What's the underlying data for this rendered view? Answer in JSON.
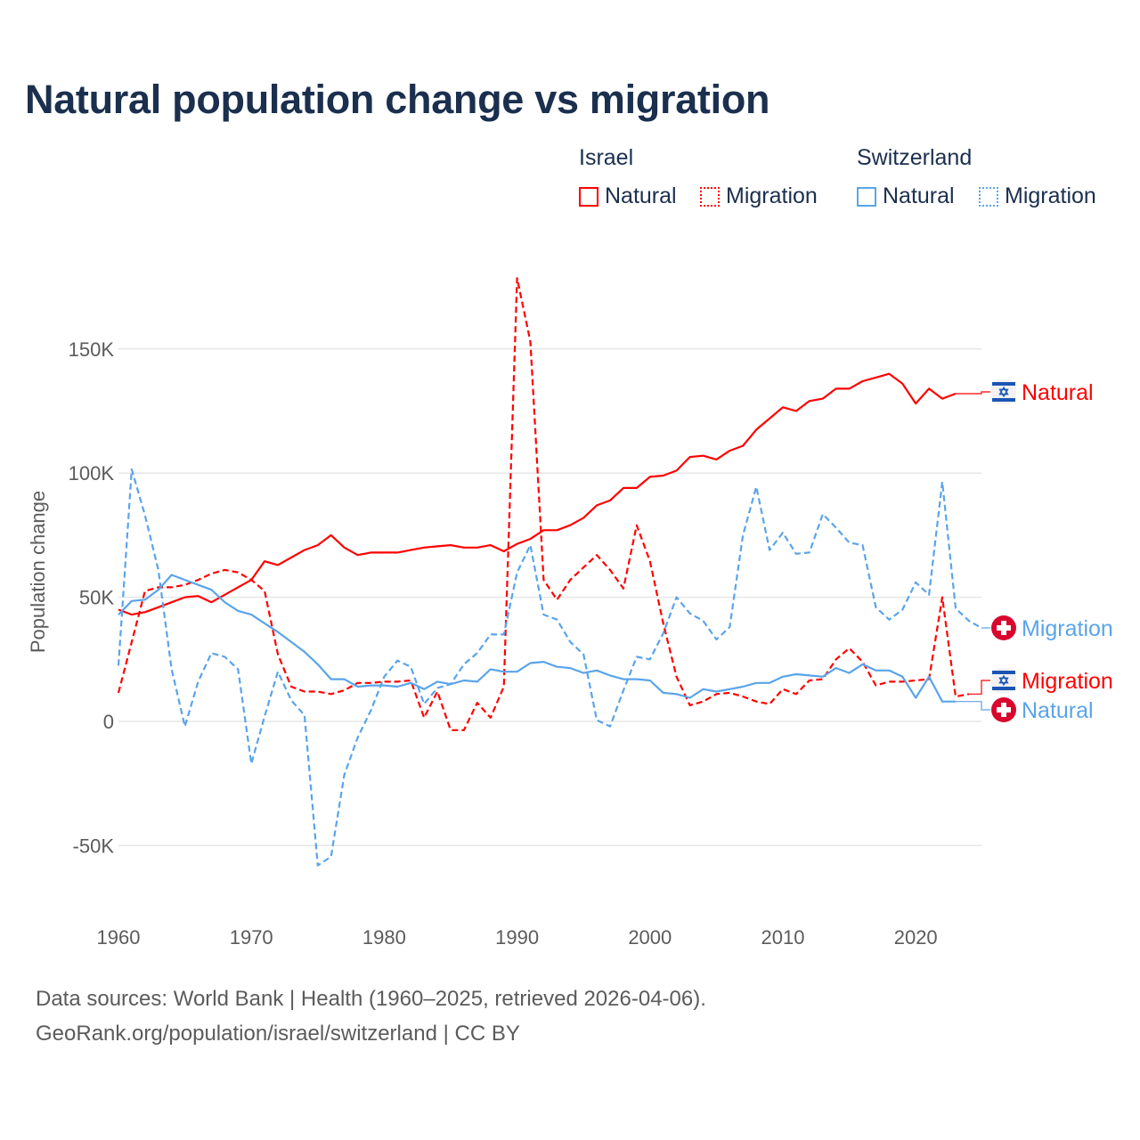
{
  "title": "Natural population change vs migration",
  "legend": {
    "groups": [
      {
        "name": "Israel",
        "items": [
          {
            "label": "Natural",
            "style": "solid",
            "color": "#ff0000"
          },
          {
            "label": "Migration",
            "style": "dotted",
            "color": "#ff0000"
          }
        ]
      },
      {
        "name": "Switzerland",
        "items": [
          {
            "label": "Natural",
            "style": "solid",
            "color": "#5aa4ea"
          },
          {
            "label": "Migration",
            "style": "dotted",
            "color": "#5aa4ea"
          }
        ]
      }
    ]
  },
  "footer": {
    "line1": "Data sources: World Bank | Health (1960–2025, retrieved 2026-04-06).",
    "line2": "GeoRank.org/population/israel/switzerland | CC BY"
  },
  "chart_data": {
    "type": "line",
    "title": "Natural population change vs migration",
    "xlabel": "",
    "ylabel": "Population change",
    "xlim": [
      1960,
      2025
    ],
    "ylim": [
      -60000,
      180000
    ],
    "x_ticks": [
      1960,
      1970,
      1980,
      1990,
      2000,
      2010,
      2020
    ],
    "x_tick_labels": [
      "1960",
      "1970",
      "1980",
      "1990",
      "2000",
      "2010",
      "2020"
    ],
    "y_ticks": [
      -50000,
      0,
      50000,
      100000,
      150000
    ],
    "y_tick_labels": [
      "-50K",
      "0",
      "50K",
      "100K",
      "150K"
    ],
    "grid": "horizontal",
    "legend_position": "top-right",
    "series": [
      {
        "name": "Israel Natural",
        "country": "Israel",
        "kind": "Natural",
        "color": "#ff0000",
        "dash": "solid",
        "end_label": "Natural",
        "flag": "israel-flag",
        "start_year": 1960,
        "values": [
          45000,
          43000,
          44000,
          46000,
          48000,
          50000,
          50500,
          48000,
          51000,
          54000,
          57000,
          64500,
          63000,
          66000,
          69000,
          71000,
          75000,
          70000,
          67000,
          68000,
          68000,
          68000,
          69000,
          70000,
          70500,
          71000,
          70000,
          70000,
          71000,
          68500,
          71500,
          73500,
          77000,
          77000,
          79000,
          82000,
          87000,
          89000,
          94000,
          94000,
          98500,
          99000,
          101000,
          106500,
          107000,
          105500,
          109000,
          111000,
          117500,
          122000,
          126500,
          125000,
          129000,
          130000,
          134000,
          134000,
          137000,
          138500,
          140000,
          136000,
          128000,
          134000,
          130000,
          132000
        ]
      },
      {
        "name": "Israel Migration",
        "country": "Israel",
        "kind": "Migration",
        "color": "#ff0000",
        "dash": "dashed",
        "end_label": "Migration",
        "flag": "israel-flag",
        "start_year": 1960,
        "values": [
          11500,
          32000,
          52500,
          54000,
          54000,
          55000,
          57000,
          59500,
          61000,
          60000,
          57000,
          52500,
          27000,
          14000,
          12000,
          12000,
          11000,
          12500,
          15500,
          15500,
          16000,
          16000,
          16500,
          1500,
          12000,
          -3500,
          -3500,
          7500,
          1500,
          14000,
          178500,
          153000,
          57000,
          49000,
          57000,
          62000,
          67000,
          61000,
          53500,
          79000,
          64500,
          39500,
          18000,
          6500,
          8000,
          11000,
          11500,
          10000,
          8000,
          7000,
          13000,
          11000,
          16500,
          17000,
          25000,
          29500,
          24000,
          14500,
          16000,
          16000,
          16500,
          17000,
          50000,
          10000,
          11000
        ]
      },
      {
        "name": "Switzerland Natural",
        "country": "Switzerland",
        "kind": "Natural",
        "color": "#5aa4ea",
        "dash": "solid",
        "end_label": "Natural",
        "flag": "switzerland-flag",
        "start_year": 1960,
        "values": [
          43000,
          48500,
          49000,
          53000,
          59000,
          57000,
          55000,
          53000,
          48000,
          44500,
          43000,
          39500,
          36000,
          32000,
          28000,
          23000,
          17000,
          17000,
          14000,
          14500,
          14500,
          14000,
          15500,
          13000,
          16000,
          15000,
          16500,
          16000,
          21000,
          20000,
          20000,
          23500,
          24000,
          22000,
          21500,
          19500,
          20500,
          18500,
          17000,
          17000,
          16500,
          11500,
          11000,
          9500,
          13000,
          12000,
          13000,
          14000,
          15500,
          15500,
          18000,
          19000,
          18500,
          18000,
          21500,
          19500,
          23000,
          20500,
          20500,
          18000,
          9500,
          18000,
          8000,
          8000
        ]
      },
      {
        "name": "Switzerland Migration",
        "country": "Switzerland",
        "kind": "Migration",
        "color": "#5aa4ea",
        "dash": "dashed",
        "end_label": "Migration",
        "flag": "switzerland-flag",
        "start_year": 1960,
        "values": [
          22500,
          101500,
          83000,
          61000,
          21000,
          -2000,
          16000,
          27500,
          26000,
          21000,
          -17000,
          2000,
          20000,
          8500,
          2500,
          -58000,
          -54500,
          -21500,
          -6500,
          4500,
          18000,
          24500,
          22000,
          7000,
          13500,
          15000,
          23000,
          27500,
          35000,
          35000,
          60000,
          71000,
          43000,
          41000,
          32000,
          27000,
          500,
          -2000,
          12500,
          26000,
          25000,
          35500,
          50000,
          43500,
          40500,
          33000,
          38000,
          75000,
          94500,
          69000,
          76000,
          67500,
          68000,
          83500,
          78000,
          72000,
          71000,
          46000,
          41000,
          45000,
          56000,
          51000,
          96500,
          45500,
          40500,
          37500
        ]
      }
    ]
  }
}
